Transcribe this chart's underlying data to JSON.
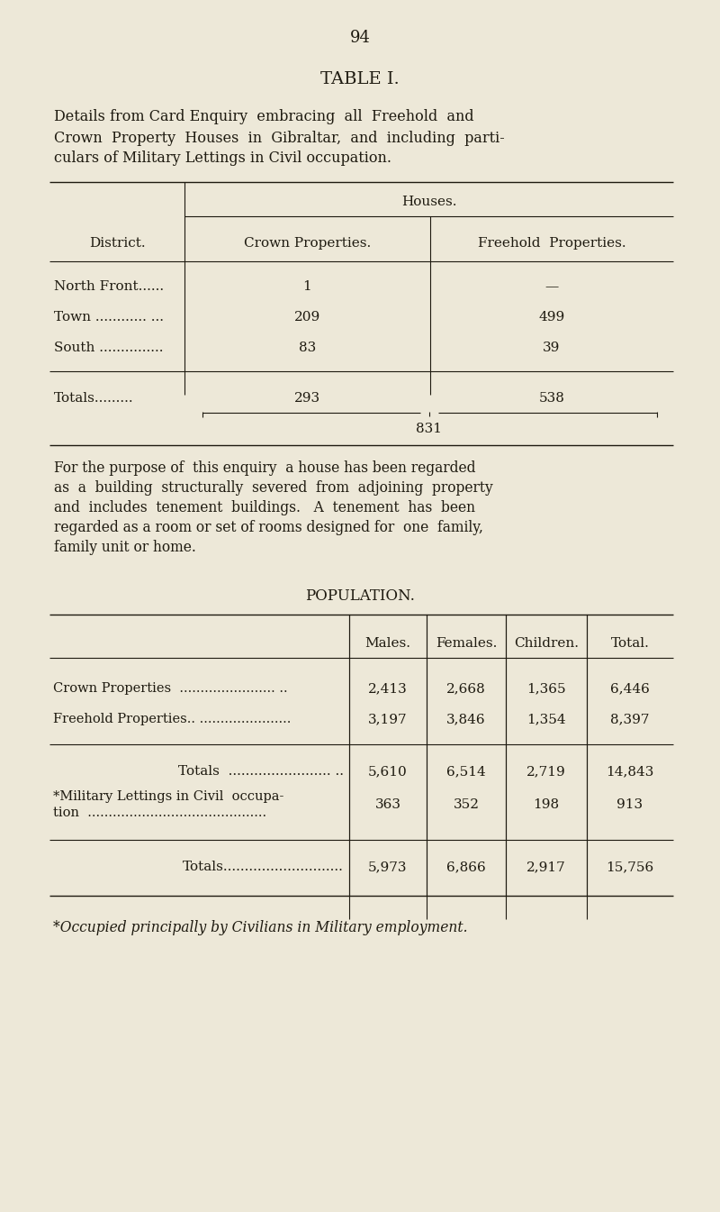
{
  "bg_color": "#ede8d8",
  "text_color": "#1e1a10",
  "page_number": "94",
  "title": "TABLE I.",
  "subtitle_lines": [
    "Details from Card Enquiry  embracing  all  Freehold  and",
    "Crown  Property  Houses  in  Gibraltar,  and  including  parti-",
    "culars of Military Lettings in Civil occupation."
  ],
  "table1_header_main": "Houses.",
  "table1_col1_header": "District.",
  "table1_col2_header": "Crown Properties.",
  "table1_col3_header": "Freehold  Properties.",
  "table1_rows": [
    {
      "district": "North Front......",
      "crown": "1",
      "freehold": "—"
    },
    {
      "district": "Town ............ ...",
      "crown": "209",
      "freehold": "499"
    },
    {
      "district": "South ...............",
      "crown": "83",
      "freehold": "39"
    }
  ],
  "table1_totals_label": "Totals.........",
  "table1_totals_crown": "293",
  "table1_totals_freehold": "538",
  "table1_grand_total": "831",
  "note_lines": [
    "For the purpose of  this enquiry  a house has been regarded",
    "as  a  building  structurally  severed  from  adjoining  property",
    "and  includes  tenement  buildings.   A  tenement  has  been",
    "regarded as a room or set of rooms designed for  one  family,",
    "family unit or home."
  ],
  "pop_title": "POPULATION.",
  "pop_col_headers": [
    "Males.",
    "Females.",
    "Children.",
    "Total."
  ],
  "pop_rows": [
    {
      "label": "Crown Properties  ....................... ..",
      "males": "2,413",
      "females": "2,668",
      "children": "1,365",
      "total": "6,446"
    },
    {
      "label": "Freehold Properties.. ......................",
      "males": "3,197",
      "females": "3,846",
      "children": "1,354",
      "total": "8,397"
    }
  ],
  "pop_totals1_label": "Totals  ........................ ..",
  "pop_totals1": [
    "5,610",
    "6,514",
    "2,719",
    "14,843"
  ],
  "pop_mil_label_line1": "*Military Lettings in Civil  occupa-",
  "pop_mil_label_line2": "tion  ...........................................",
  "pop_mil": [
    "363",
    "352",
    "198",
    "913"
  ],
  "pop_totals2_label": "Totals............................",
  "pop_totals2": [
    "5,973",
    "6,866",
    "2,917",
    "15,756"
  ],
  "footnote": "*Occupied principally by Civilians in Military employment."
}
